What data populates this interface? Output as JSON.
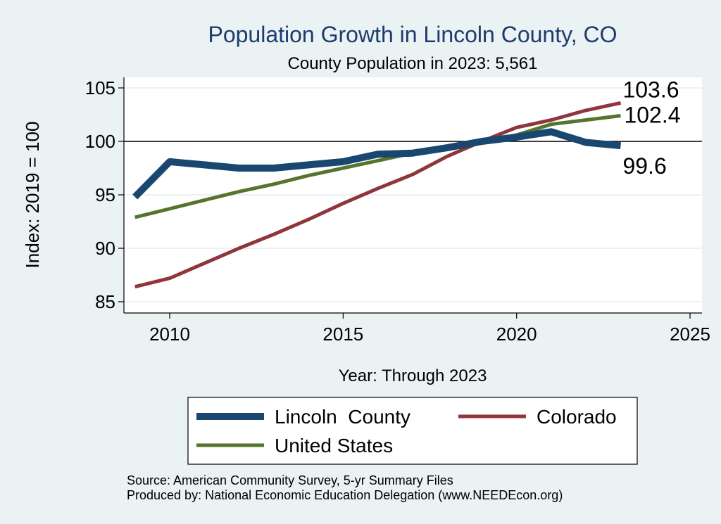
{
  "chart_data": {
    "type": "line",
    "title": "Population Growth in Lincoln County, CO",
    "subtitle": "County Population in 2023: 5,561",
    "xlabel": "Year: Through 2023",
    "ylabel": "Index: 2019 = 100",
    "xlim": [
      2009,
      2025
    ],
    "ylim": [
      85,
      105
    ],
    "x_ticks": [
      2010,
      2015,
      2020,
      2025
    ],
    "y_ticks": [
      85,
      90,
      95,
      100,
      105
    ],
    "reference_line": 100,
    "grid": true,
    "legend_position": "bottom",
    "x": [
      2009,
      2010,
      2011,
      2012,
      2013,
      2014,
      2015,
      2016,
      2017,
      2018,
      2019,
      2020,
      2021,
      2022,
      2023
    ],
    "series": [
      {
        "name": "Lincoln  County",
        "color": "#1a476f",
        "values": [
          94.8,
          98.1,
          97.8,
          97.5,
          97.5,
          97.8,
          98.1,
          98.8,
          98.9,
          99.4,
          100.0,
          100.4,
          100.9,
          99.9,
          99.6
        ],
        "end_label": "99.6"
      },
      {
        "name": "Colorado",
        "color": "#90353b",
        "values": [
          86.4,
          87.2,
          88.6,
          90.0,
          91.3,
          92.7,
          94.2,
          95.6,
          96.9,
          98.6,
          100.0,
          101.3,
          102.0,
          102.9,
          103.6
        ],
        "end_label": "103.6"
      },
      {
        "name": "United States",
        "color": "#55752f",
        "values": [
          92.9,
          93.7,
          94.5,
          95.3,
          96.0,
          96.8,
          97.5,
          98.2,
          98.9,
          99.5,
          100.0,
          100.6,
          101.6,
          102.0,
          102.4
        ],
        "end_label": "102.4"
      }
    ]
  },
  "footer": {
    "source": "Source: American Community Survey, 5-yr Summary Files",
    "produced_by": "Produced by: National Economic Education Delegation (www.NEEDEcon.org)"
  }
}
